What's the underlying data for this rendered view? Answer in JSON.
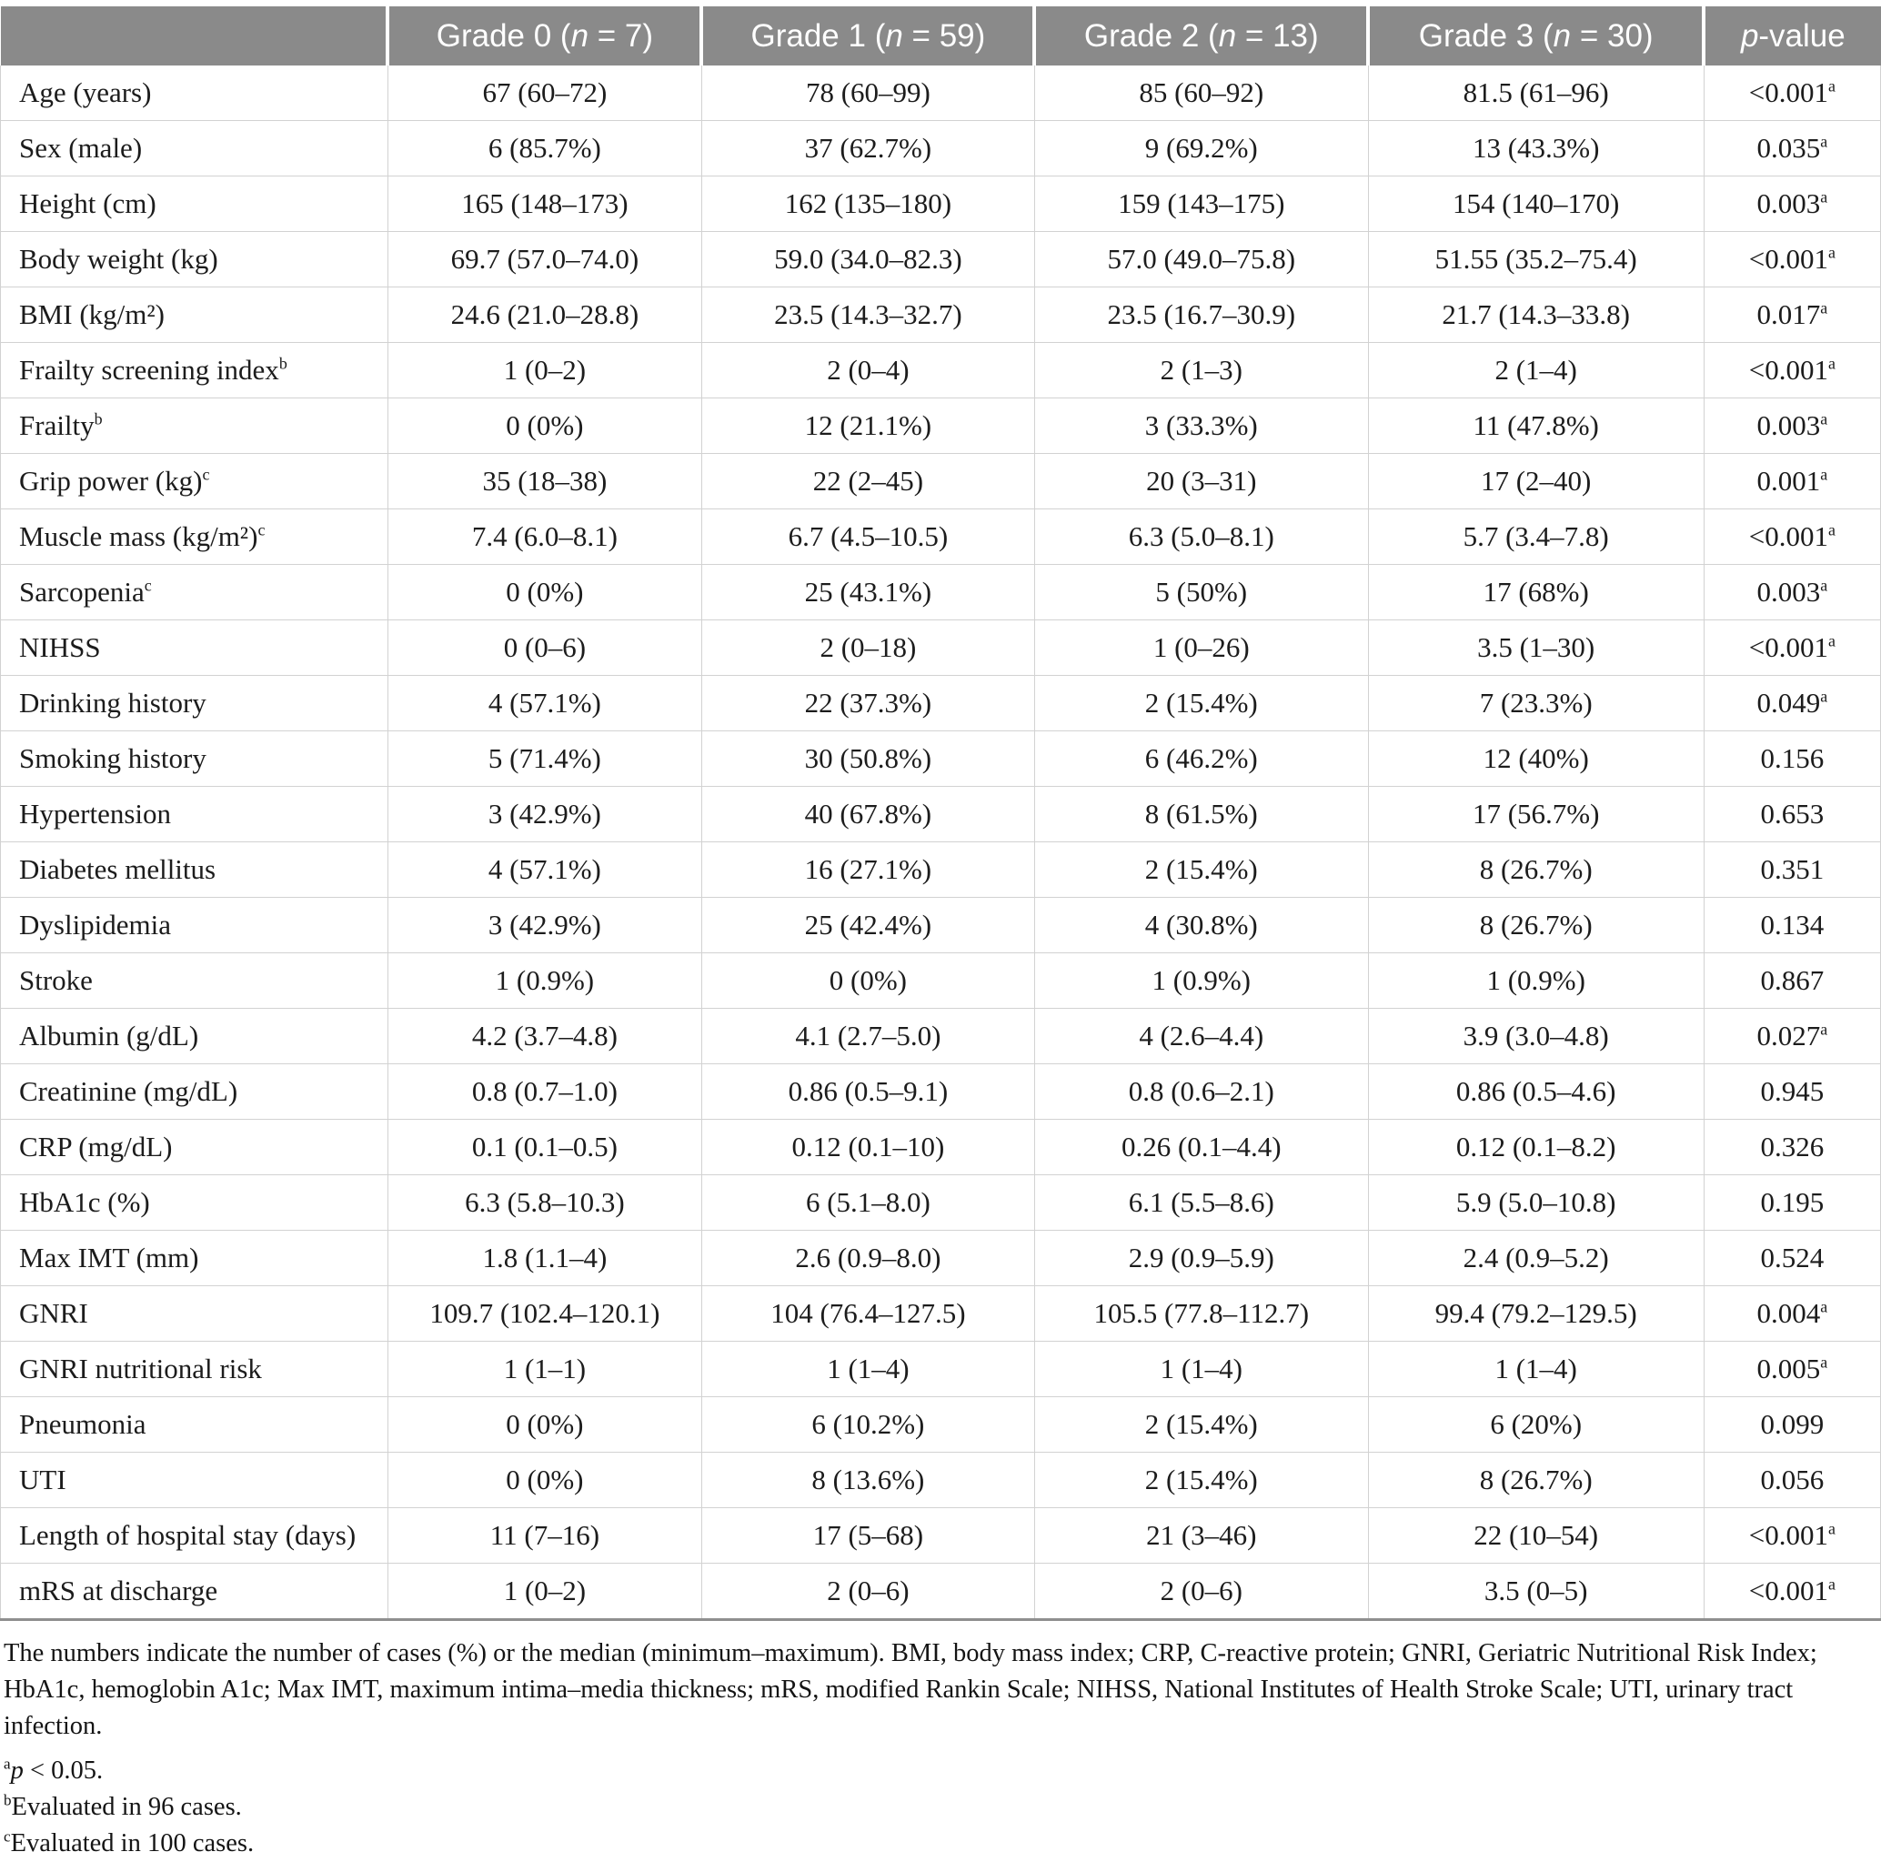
{
  "colors": {
    "header_bg": "#8a8a8a",
    "header_text": "#ffffff",
    "body_text": "#1c1c1c",
    "grid_line": "#d2d2d2",
    "table_bottom_border": "#8f8f8f"
  },
  "table": {
    "header": [
      {
        "pre": "",
        "it": "",
        "post": ""
      },
      {
        "pre": "Grade 0 (",
        "it": "n",
        "post": " = 7)"
      },
      {
        "pre": "Grade 1 (",
        "it": "n",
        "post": " = 59)"
      },
      {
        "pre": "Grade 2 (",
        "it": "n",
        "post": " = 13)"
      },
      {
        "pre": "Grade 3 (",
        "it": "n",
        "post": " = 30)"
      },
      {
        "pre": "",
        "it": "p",
        "post": "-value"
      }
    ],
    "rows": [
      {
        "label": "Age (years)",
        "label_sup": "",
        "values": [
          "67 (60–72)",
          "78 (60–99)",
          "85 (60–92)",
          "81.5 (61–96)"
        ],
        "p": "<0.001",
        "p_sup": "a"
      },
      {
        "label": "Sex (male)",
        "label_sup": "",
        "values": [
          "6 (85.7%)",
          "37 (62.7%)",
          "9 (69.2%)",
          "13 (43.3%)"
        ],
        "p": "0.035",
        "p_sup": "a"
      },
      {
        "label": "Height (cm)",
        "label_sup": "",
        "values": [
          "165 (148–173)",
          "162 (135–180)",
          "159 (143–175)",
          "154 (140–170)"
        ],
        "p": "0.003",
        "p_sup": "a"
      },
      {
        "label": "Body weight (kg)",
        "label_sup": "",
        "values": [
          "69.7 (57.0–74.0)",
          "59.0 (34.0–82.3)",
          "57.0 (49.0–75.8)",
          "51.55 (35.2–75.4)"
        ],
        "p": "<0.001",
        "p_sup": "a"
      },
      {
        "label": "BMI (kg/m²)",
        "label_sup": "",
        "values": [
          "24.6 (21.0–28.8)",
          "23.5 (14.3–32.7)",
          "23.5 (16.7–30.9)",
          "21.7 (14.3–33.8)"
        ],
        "p": "0.017",
        "p_sup": "a"
      },
      {
        "label": "Frailty screening index",
        "label_sup": "b",
        "values": [
          "1 (0–2)",
          "2 (0–4)",
          "2 (1–3)",
          "2 (1–4)"
        ],
        "p": "<0.001",
        "p_sup": "a"
      },
      {
        "label": "Frailty",
        "label_sup": "b",
        "values": [
          "0 (0%)",
          "12 (21.1%)",
          "3 (33.3%)",
          "11 (47.8%)"
        ],
        "p": "0.003",
        "p_sup": "a"
      },
      {
        "label": "Grip power (kg)",
        "label_sup": "c",
        "values": [
          "35 (18–38)",
          "22 (2–45)",
          "20 (3–31)",
          "17 (2–40)"
        ],
        "p": "0.001",
        "p_sup": "a"
      },
      {
        "label": "Muscle mass (kg/m²)",
        "label_sup": "c",
        "values": [
          "7.4 (6.0–8.1)",
          "6.7 (4.5–10.5)",
          "6.3 (5.0–8.1)",
          "5.7 (3.4–7.8)"
        ],
        "p": "<0.001",
        "p_sup": "a"
      },
      {
        "label": "Sarcopenia",
        "label_sup": "c",
        "values": [
          "0 (0%)",
          "25 (43.1%)",
          "5 (50%)",
          "17 (68%)"
        ],
        "p": "0.003",
        "p_sup": "a"
      },
      {
        "label": "NIHSS",
        "label_sup": "",
        "values": [
          "0 (0–6)",
          "2 (0–18)",
          "1 (0–26)",
          "3.5 (1–30)"
        ],
        "p": "<0.001",
        "p_sup": "a"
      },
      {
        "label": "Drinking history",
        "label_sup": "",
        "values": [
          "4 (57.1%)",
          "22 (37.3%)",
          "2 (15.4%)",
          "7 (23.3%)"
        ],
        "p": "0.049",
        "p_sup": "a"
      },
      {
        "label": "Smoking history",
        "label_sup": "",
        "values": [
          "5 (71.4%)",
          "30 (50.8%)",
          "6 (46.2%)",
          "12 (40%)"
        ],
        "p": "0.156",
        "p_sup": ""
      },
      {
        "label": "Hypertension",
        "label_sup": "",
        "values": [
          "3 (42.9%)",
          "40 (67.8%)",
          "8 (61.5%)",
          "17 (56.7%)"
        ],
        "p": "0.653",
        "p_sup": ""
      },
      {
        "label": "Diabetes mellitus",
        "label_sup": "",
        "values": [
          "4 (57.1%)",
          "16 (27.1%)",
          "2 (15.4%)",
          "8 (26.7%)"
        ],
        "p": "0.351",
        "p_sup": ""
      },
      {
        "label": "Dyslipidemia",
        "label_sup": "",
        "values": [
          "3 (42.9%)",
          "25 (42.4%)",
          "4 (30.8%)",
          "8 (26.7%)"
        ],
        "p": "0.134",
        "p_sup": ""
      },
      {
        "label": "Stroke",
        "label_sup": "",
        "values": [
          "1 (0.9%)",
          "0 (0%)",
          "1 (0.9%)",
          "1 (0.9%)"
        ],
        "p": "0.867",
        "p_sup": ""
      },
      {
        "label": "Albumin (g/dL)",
        "label_sup": "",
        "values": [
          "4.2 (3.7–4.8)",
          "4.1 (2.7–5.0)",
          "4 (2.6–4.4)",
          "3.9 (3.0–4.8)"
        ],
        "p": "0.027",
        "p_sup": "a"
      },
      {
        "label": "Creatinine (mg/dL)",
        "label_sup": "",
        "values": [
          "0.8 (0.7–1.0)",
          "0.86 (0.5–9.1)",
          "0.8 (0.6–2.1)",
          "0.86 (0.5–4.6)"
        ],
        "p": "0.945",
        "p_sup": ""
      },
      {
        "label": "CRP (mg/dL)",
        "label_sup": "",
        "values": [
          "0.1 (0.1–0.5)",
          "0.12 (0.1–10)",
          "0.26 (0.1–4.4)",
          "0.12 (0.1–8.2)"
        ],
        "p": "0.326",
        "p_sup": ""
      },
      {
        "label": "HbA1c (%)",
        "label_sup": "",
        "values": [
          "6.3 (5.8–10.3)",
          "6 (5.1–8.0)",
          "6.1 (5.5–8.6)",
          "5.9 (5.0–10.8)"
        ],
        "p": "0.195",
        "p_sup": ""
      },
      {
        "label": "Max IMT (mm)",
        "label_sup": "",
        "values": [
          "1.8 (1.1–4)",
          "2.6 (0.9–8.0)",
          "2.9 (0.9–5.9)",
          "2.4 (0.9–5.2)"
        ],
        "p": "0.524",
        "p_sup": ""
      },
      {
        "label": "GNRI",
        "label_sup": "",
        "values": [
          "109.7 (102.4–120.1)",
          "104 (76.4–127.5)",
          "105.5 (77.8–112.7)",
          "99.4 (79.2–129.5)"
        ],
        "p": "0.004",
        "p_sup": "a"
      },
      {
        "label": "GNRI nutritional risk",
        "label_sup": "",
        "values": [
          "1 (1–1)",
          "1 (1–4)",
          "1 (1–4)",
          "1 (1–4)"
        ],
        "p": "0.005",
        "p_sup": "a"
      },
      {
        "label": "Pneumonia",
        "label_sup": "",
        "values": [
          "0 (0%)",
          "6 (10.2%)",
          "2 (15.4%)",
          "6 (20%)"
        ],
        "p": "0.099",
        "p_sup": ""
      },
      {
        "label": "UTI",
        "label_sup": "",
        "values": [
          "0 (0%)",
          "8 (13.6%)",
          "2 (15.4%)",
          "8 (26.7%)"
        ],
        "p": "0.056",
        "p_sup": ""
      },
      {
        "label": "Length of hospital stay (days)",
        "label_sup": "",
        "values": [
          "11 (7–16)",
          "17 (5–68)",
          "21 (3–46)",
          "22 (10–54)"
        ],
        "p": "<0.001",
        "p_sup": "a"
      },
      {
        "label": "mRS at discharge",
        "label_sup": "",
        "values": [
          "1 (0–2)",
          "2 (0–6)",
          "2 (0–6)",
          "3.5 (0–5)"
        ],
        "p": "<0.001",
        "p_sup": "a"
      }
    ]
  },
  "footnotes": {
    "abbrev": "The numbers indicate the number of cases (%) or the median (minimum–maximum). BMI, body mass index; CRP, C-reactive protein; GNRI, Geriatric Nutritional Risk Index; HbA1c, hemoglobin A1c; Max IMT, maximum intima–media thickness; mRS, modified Rankin Scale; NIHSS, National Institutes of Health Stroke Scale; UTI, urinary tract infection.",
    "a": {
      "sup": "a",
      "it": "p",
      "text": " < 0.05."
    },
    "b": {
      "sup": "b",
      "text": "Evaluated in 96 cases."
    },
    "c": {
      "sup": "c",
      "text": "Evaluated in 100 cases."
    }
  }
}
